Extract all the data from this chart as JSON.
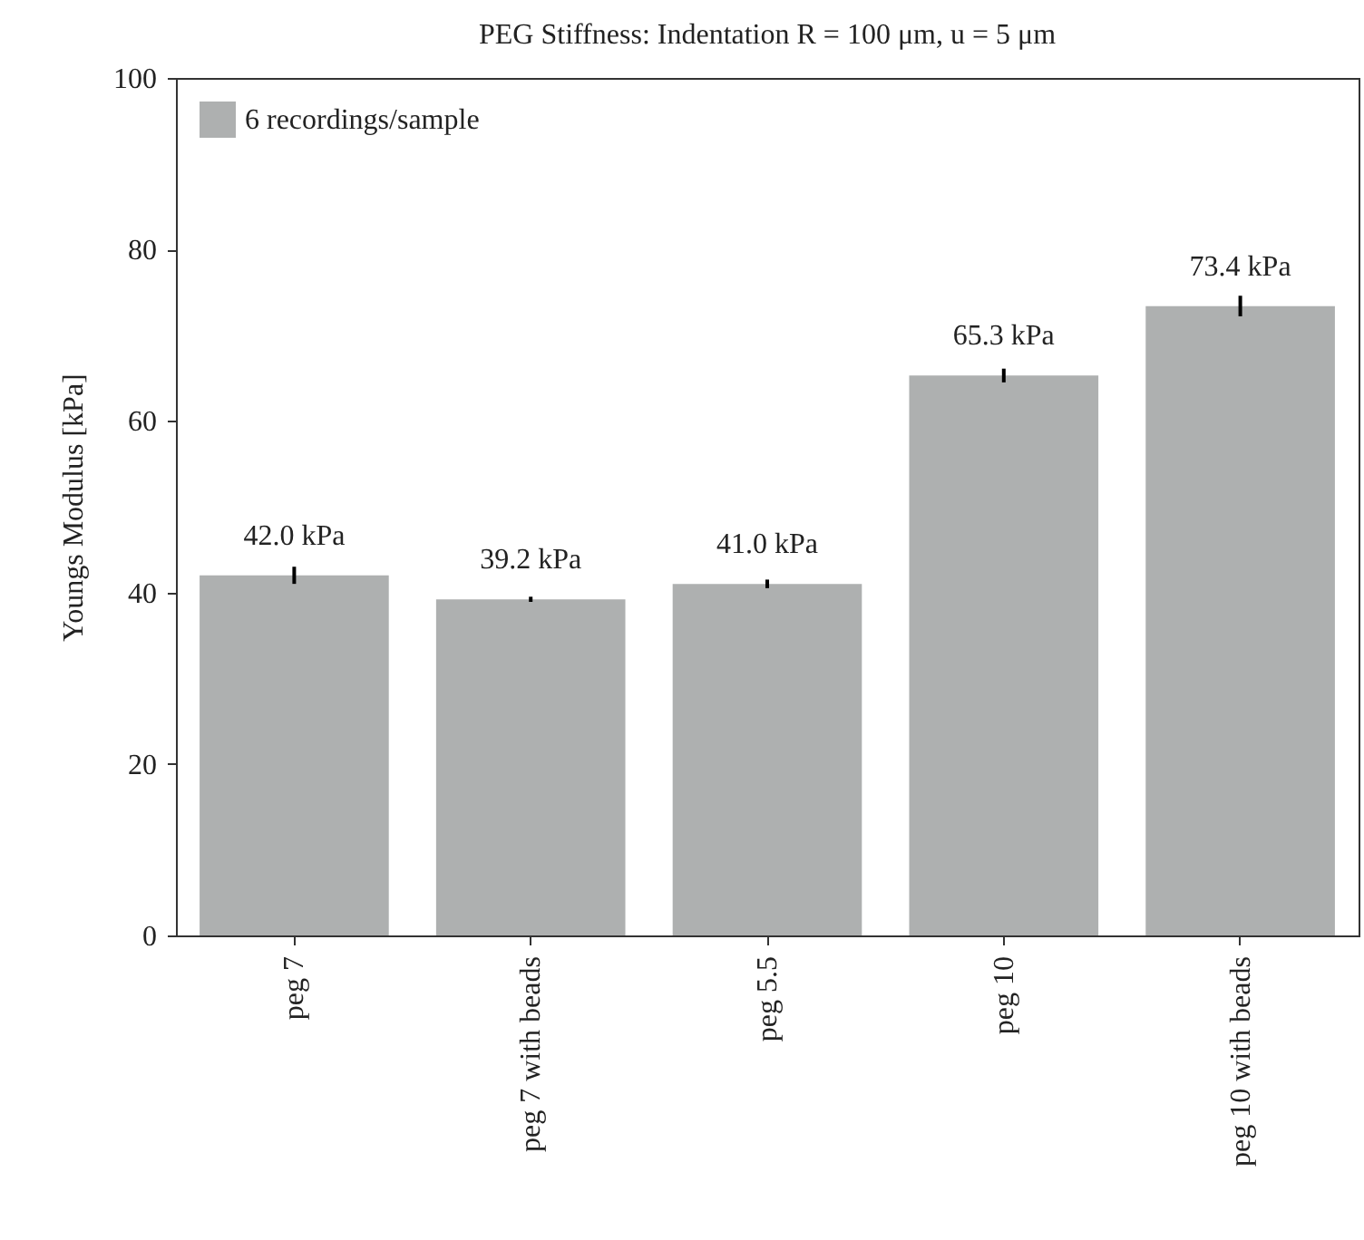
{
  "chart_data": {
    "type": "bar",
    "title": "PEG Stiffness: Indentation R = 100 μm, u = 5 μm",
    "ylabel": "Youngs Modulus [kPa]",
    "categories": [
      "peg 7",
      "peg 7 with beads",
      "peg 5.5",
      "peg 10",
      "peg 10 with beads"
    ],
    "series": [
      {
        "name": "6 recordings/sample",
        "color": "#aeb0b0",
        "values": [
          42.0,
          39.2,
          41.0,
          65.3,
          73.4
        ],
        "errors": [
          1.0,
          0.3,
          0.5,
          0.8,
          1.2
        ],
        "value_labels": [
          "42.0 kPa",
          "39.2 kPa",
          "41.0 kPa",
          "65.3 kPa",
          "73.4 kPa"
        ]
      }
    ],
    "ylim": [
      0,
      100
    ],
    "yticks": [
      0,
      20,
      40,
      60,
      80,
      100
    ],
    "grid": false,
    "legend": "top left"
  }
}
